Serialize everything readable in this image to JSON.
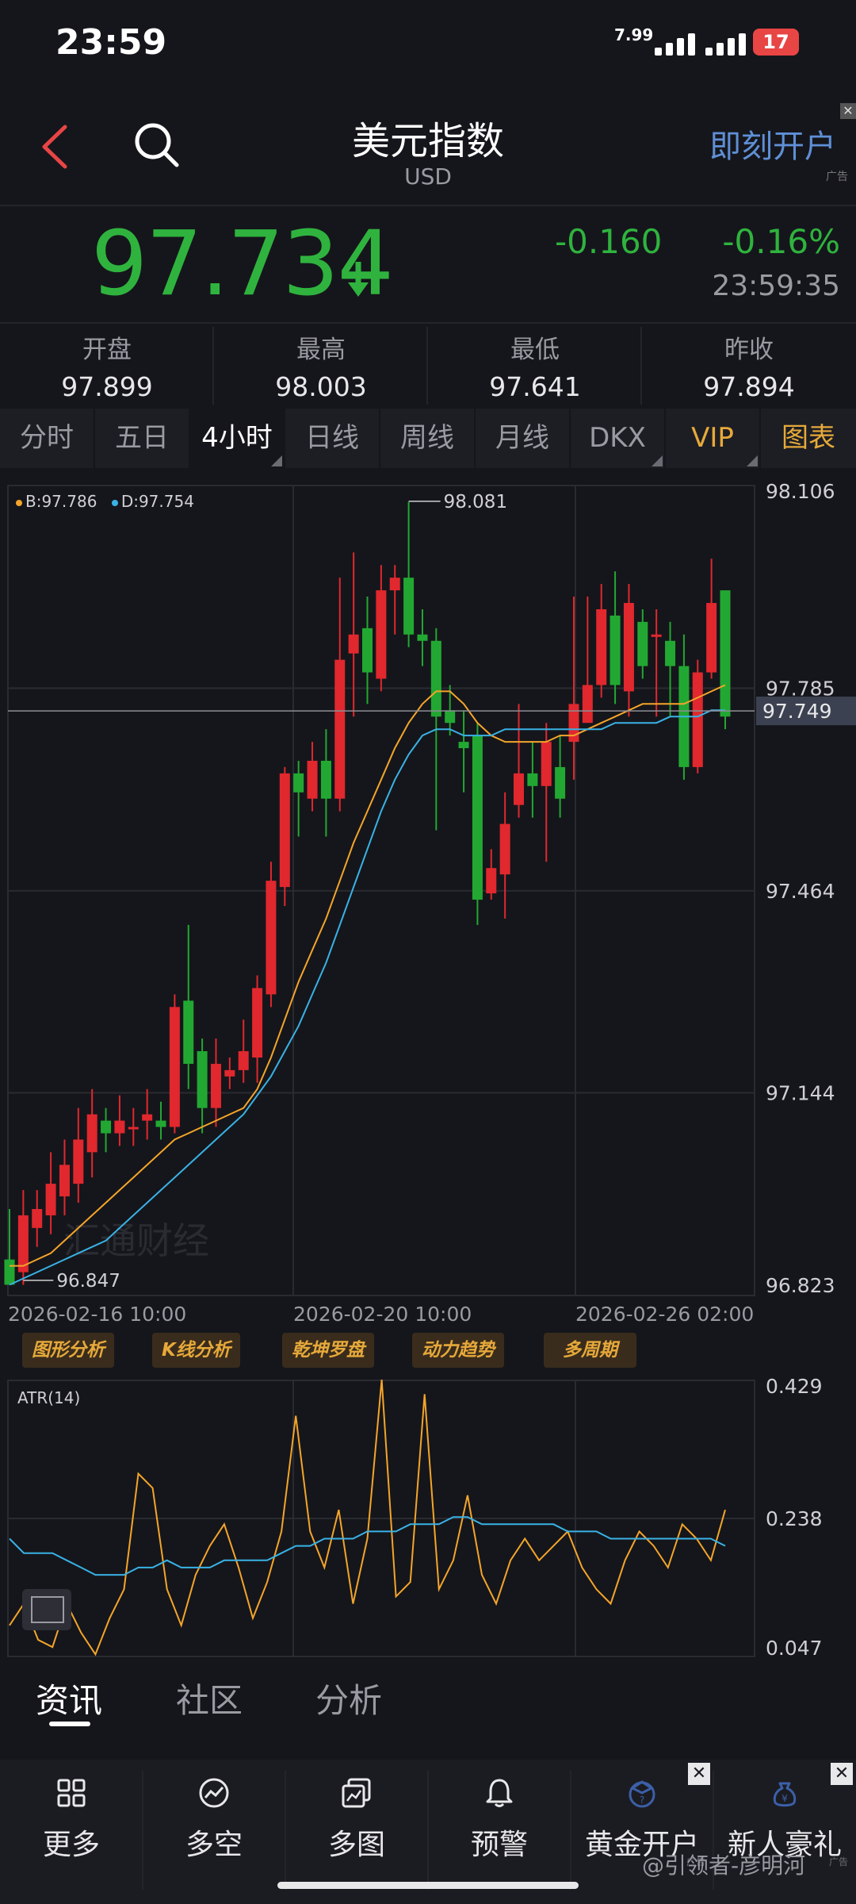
{
  "status_bar": {
    "time": "23:59",
    "net_speed": "7.99",
    "battery": "17"
  },
  "header": {
    "title": "美元指数",
    "subtitle": "USD",
    "open_account_ad": "即刻开户",
    "ad_label": "广告"
  },
  "quote": {
    "price": "97.734",
    "change": "-0.160",
    "change_pct": "-0.16%",
    "time": "23:59:35"
  },
  "stats": [
    {
      "label": "开盘",
      "value": "97.899"
    },
    {
      "label": "最高",
      "value": "98.003"
    },
    {
      "label": "最低",
      "value": "97.641"
    },
    {
      "label": "昨收",
      "value": "97.894"
    }
  ],
  "period_tabs": [
    "分时",
    "五日",
    "4小时",
    "日线",
    "周线",
    "月线",
    "DKX",
    "VIP",
    "图表"
  ],
  "active_period": "4小时",
  "legend": {
    "b": "B:97.786",
    "d": "D:97.754"
  },
  "chart_colors": {
    "up": "#e0282e",
    "down": "#22a832",
    "ma_b": "#f4a52a",
    "ma_d": "#39b2e6",
    "atr": "#f4a52a",
    "atr_ma": "#39b2e6"
  },
  "chart_data": [
    {
      "type": "candlestick",
      "ylim": [
        96.823,
        98.106
      ],
      "y_ticks": [
        "98.106",
        "97.785",
        "97.464",
        "97.144",
        "96.823"
      ],
      "current_price_label": "97.749",
      "high_marker": "98.081",
      "low_marker": "96.847",
      "x_ticks": [
        "2026-02-16 10:00",
        "2026-02-20 10:00",
        "2026-02-26 02:00"
      ],
      "watermark": "汇通财经",
      "candles": [
        [
          96.88,
          96.84,
          96.96,
          96.85
        ],
        [
          96.86,
          96.95,
          96.99,
          96.84
        ],
        [
          96.93,
          96.96,
          96.99,
          96.9
        ],
        [
          96.95,
          97.0,
          97.05,
          96.92
        ],
        [
          96.98,
          97.03,
          97.07,
          96.95
        ],
        [
          97.0,
          97.07,
          97.12,
          96.97
        ],
        [
          97.05,
          97.11,
          97.15,
          97.01
        ],
        [
          97.1,
          97.08,
          97.12,
          97.05
        ],
        [
          97.08,
          97.1,
          97.14,
          97.06
        ],
        [
          97.09,
          97.09,
          97.12,
          97.06
        ],
        [
          97.1,
          97.11,
          97.15,
          97.07
        ],
        [
          97.1,
          97.09,
          97.13,
          97.07
        ],
        [
          97.09,
          97.28,
          97.3,
          97.08
        ],
        [
          97.29,
          97.19,
          97.41,
          97.15
        ],
        [
          97.21,
          97.12,
          97.23,
          97.08
        ],
        [
          97.12,
          97.19,
          97.23,
          97.09
        ],
        [
          97.17,
          97.18,
          97.2,
          97.15
        ],
        [
          97.18,
          97.21,
          97.26,
          97.16
        ],
        [
          97.2,
          97.31,
          97.33,
          97.16
        ],
        [
          97.3,
          97.48,
          97.51,
          97.28
        ],
        [
          97.47,
          97.65,
          97.66,
          97.44
        ],
        [
          97.65,
          97.62,
          97.67,
          97.55
        ],
        [
          97.61,
          97.67,
          97.7,
          97.59
        ],
        [
          97.67,
          97.61,
          97.72,
          97.55
        ],
        [
          97.61,
          97.83,
          97.96,
          97.59
        ],
        [
          97.84,
          97.87,
          98.0,
          97.74
        ],
        [
          97.88,
          97.81,
          97.93,
          97.76
        ],
        [
          97.8,
          97.94,
          97.98,
          97.78
        ],
        [
          97.94,
          97.96,
          97.98,
          97.87
        ],
        [
          97.96,
          97.87,
          98.08,
          97.85
        ],
        [
          97.87,
          97.86,
          97.91,
          97.82
        ],
        [
          97.86,
          97.74,
          97.88,
          97.56
        ],
        [
          97.75,
          97.73,
          97.79,
          97.71
        ],
        [
          97.7,
          97.69,
          97.75,
          97.62
        ],
        [
          97.71,
          97.45,
          97.73,
          97.41
        ],
        [
          97.46,
          97.5,
          97.53,
          97.45
        ],
        [
          97.49,
          97.57,
          97.62,
          97.42
        ],
        [
          97.6,
          97.65,
          97.76,
          97.58
        ],
        [
          97.65,
          97.63,
          97.7,
          97.58
        ],
        [
          97.63,
          97.7,
          97.73,
          97.51
        ],
        [
          97.66,
          97.61,
          97.71,
          97.58
        ],
        [
          97.7,
          97.76,
          97.93,
          97.64
        ],
        [
          97.73,
          97.79,
          97.93,
          97.75
        ],
        [
          97.79,
          97.91,
          97.95,
          97.77
        ],
        [
          97.9,
          97.79,
          97.97,
          97.76
        ],
        [
          97.78,
          97.92,
          97.95,
          97.74
        ],
        [
          97.89,
          97.82,
          97.91,
          97.8
        ],
        [
          97.87,
          97.87,
          97.91,
          97.74
        ],
        [
          97.86,
          97.82,
          97.89,
          97.74
        ],
        [
          97.82,
          97.66,
          97.87,
          97.64
        ],
        [
          97.66,
          97.81,
          97.83,
          97.65
        ],
        [
          97.81,
          97.92,
          97.99,
          97.8
        ],
        [
          97.94,
          97.74,
          97.94,
          97.72
        ]
      ],
      "ma_b": [
        96.87,
        96.87,
        96.88,
        96.89,
        96.91,
        96.93,
        96.95,
        96.97,
        96.99,
        97.01,
        97.03,
        97.05,
        97.07,
        97.08,
        97.09,
        97.1,
        97.11,
        97.12,
        97.15,
        97.2,
        97.26,
        97.32,
        97.37,
        97.42,
        97.48,
        97.54,
        97.59,
        97.64,
        97.69,
        97.73,
        97.76,
        97.78,
        97.78,
        97.76,
        97.73,
        97.71,
        97.7,
        97.7,
        97.7,
        97.7,
        97.71,
        97.71,
        97.72,
        97.73,
        97.74,
        97.75,
        97.76,
        97.76,
        97.76,
        97.76,
        97.77,
        97.78,
        97.79
      ],
      "ma_d": [
        96.84,
        96.85,
        96.86,
        96.87,
        96.88,
        96.89,
        96.9,
        96.91,
        96.93,
        96.95,
        96.97,
        96.99,
        97.01,
        97.03,
        97.05,
        97.07,
        97.09,
        97.11,
        97.14,
        97.17,
        97.21,
        97.25,
        97.3,
        97.35,
        97.41,
        97.47,
        97.53,
        97.59,
        97.64,
        97.68,
        97.71,
        97.72,
        97.72,
        97.71,
        97.71,
        97.71,
        97.72,
        97.72,
        97.72,
        97.72,
        97.72,
        97.72,
        97.72,
        97.72,
        97.73,
        97.73,
        97.73,
        97.73,
        97.74,
        97.74,
        97.74,
        97.75,
        97.75
      ]
    },
    {
      "type": "line",
      "title": "ATR(14)",
      "ylim": [
        0.047,
        0.429
      ],
      "y_ticks": [
        "0.429",
        "0.238",
        "0.047"
      ],
      "atr": [
        0.09,
        0.12,
        0.07,
        0.06,
        0.12,
        0.08,
        0.05,
        0.1,
        0.14,
        0.3,
        0.28,
        0.14,
        0.09,
        0.16,
        0.2,
        0.23,
        0.17,
        0.1,
        0.15,
        0.22,
        0.38,
        0.22,
        0.17,
        0.25,
        0.12,
        0.21,
        0.43,
        0.13,
        0.15,
        0.41,
        0.14,
        0.18,
        0.27,
        0.16,
        0.12,
        0.18,
        0.21,
        0.18,
        0.2,
        0.22,
        0.17,
        0.14,
        0.12,
        0.18,
        0.22,
        0.2,
        0.17,
        0.23,
        0.21,
        0.18,
        0.25
      ],
      "atr_ma": [
        0.21,
        0.19,
        0.19,
        0.19,
        0.18,
        0.17,
        0.16,
        0.16,
        0.16,
        0.17,
        0.17,
        0.18,
        0.17,
        0.17,
        0.17,
        0.18,
        0.18,
        0.18,
        0.18,
        0.19,
        0.2,
        0.2,
        0.21,
        0.21,
        0.21,
        0.22,
        0.22,
        0.22,
        0.23,
        0.23,
        0.23,
        0.24,
        0.24,
        0.23,
        0.23,
        0.23,
        0.23,
        0.23,
        0.23,
        0.22,
        0.22,
        0.22,
        0.21,
        0.21,
        0.21,
        0.21,
        0.21,
        0.21,
        0.21,
        0.21,
        0.2
      ]
    }
  ],
  "tool_buttons": [
    "图形分析",
    "K线分析",
    "乾坤罗盘",
    "动力趋势",
    "多周期"
  ],
  "content_tabs": [
    "资讯",
    "社区",
    "分析"
  ],
  "bottom_nav": [
    {
      "label": "更多",
      "icon": "grid-icon"
    },
    {
      "label": "多空",
      "icon": "trend-circle-icon"
    },
    {
      "label": "多图",
      "icon": "multi-chart-icon"
    },
    {
      "label": "预警",
      "icon": "bell-icon"
    },
    {
      "label": "黄金开户",
      "icon": "gold-hat-icon"
    },
    {
      "label": "新人豪礼",
      "icon": "gift-bag-icon"
    }
  ],
  "attribution": "@引领者-彦明河"
}
